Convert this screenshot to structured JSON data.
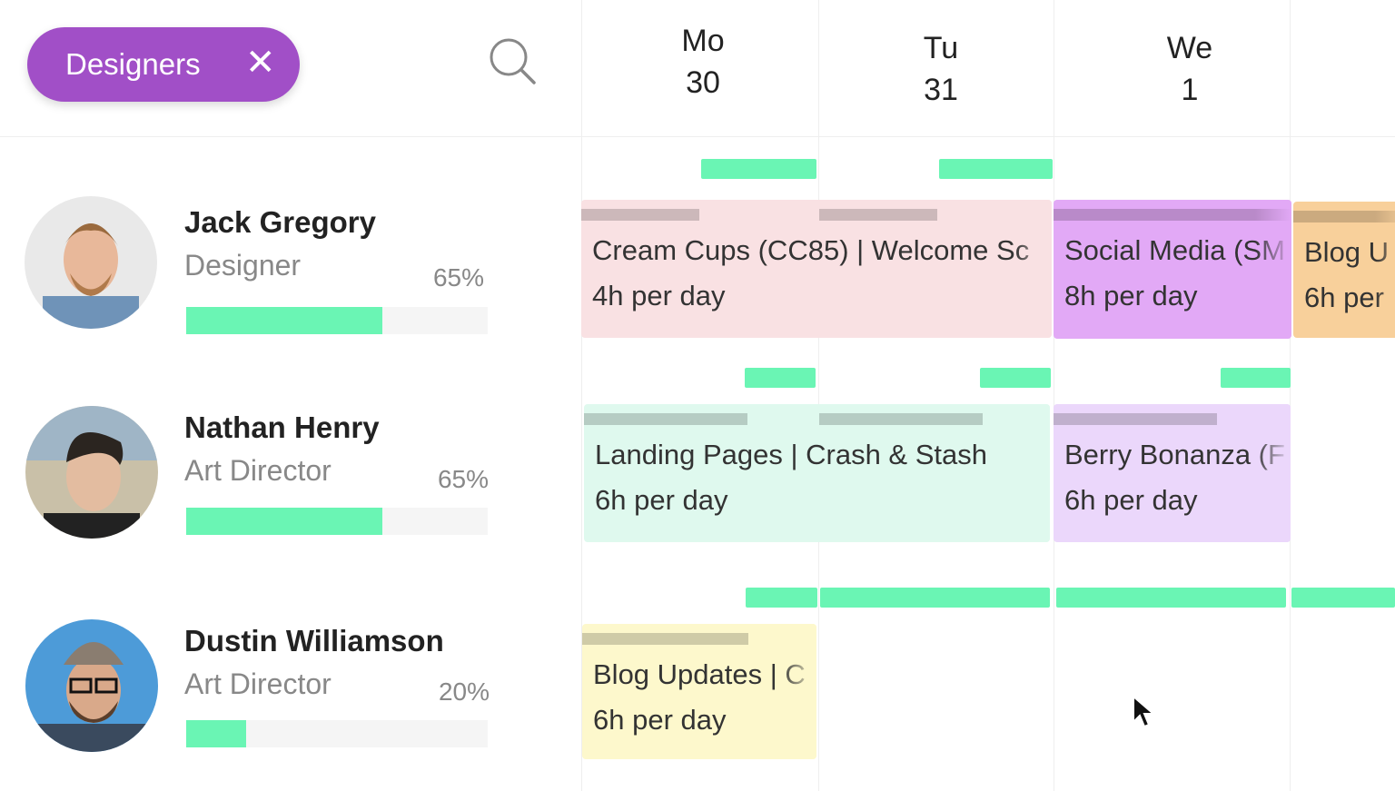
{
  "filter": {
    "label": "Designers"
  },
  "days": [
    {
      "weekday": "Mo",
      "date": "30"
    },
    {
      "weekday": "Tu",
      "date": "31"
    },
    {
      "weekday": "We",
      "date": "1"
    }
  ],
  "people": [
    {
      "name": "Jack Gregory",
      "role": "Designer",
      "utilization": {
        "value": 65,
        "label": "65%"
      },
      "bookings": [
        {
          "title": "Cream Cups (CC85) | Welcome Sc",
          "hours": "4h per day"
        },
        {
          "title": "Social Media (SM",
          "hours": "8h per day"
        },
        {
          "title": "Blog U",
          "hours": "6h per"
        }
      ]
    },
    {
      "name": "Nathan Henry",
      "role": "Art Director",
      "utilization": {
        "value": 65,
        "label": "65%"
      },
      "bookings": [
        {
          "title": "Landing Pages | Crash & Stash",
          "hours": "6h per day"
        },
        {
          "title": "Berry Bonanza (F",
          "hours": "6h per day"
        }
      ]
    },
    {
      "name": "Dustin Williamson",
      "role": "Art Director",
      "utilization": {
        "value": 20,
        "label": "20%"
      },
      "bookings": [
        {
          "title": "Blog Updates | C",
          "hours": "6h per day"
        }
      ]
    }
  ]
}
